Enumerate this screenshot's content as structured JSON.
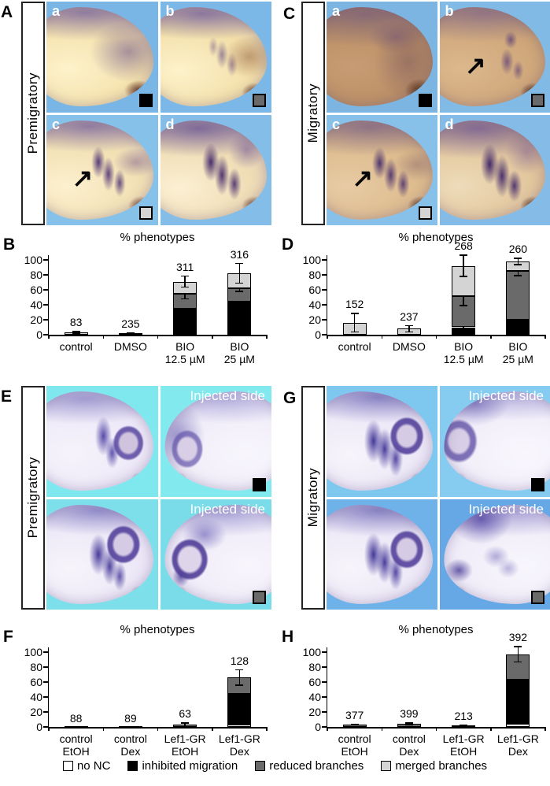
{
  "colors": {
    "black": "#000000",
    "dark_gray": "#6a6a6a",
    "light_gray": "#d4d4d4",
    "white": "#ffffff"
  },
  "icons": {
    "arrow": "↗"
  },
  "image_panels": [
    {
      "letter": "A",
      "side_label": "Premigratory",
      "tiles": [
        {
          "label": "a",
          "variant": "premig-a",
          "marker": "black"
        },
        {
          "label": "b",
          "variant": "premig-b",
          "marker": "dark_gray"
        },
        {
          "label": "c",
          "variant": "premig-c",
          "marker": "light_gray",
          "arrow": true
        },
        {
          "label": "d",
          "variant": "premig-d"
        }
      ]
    },
    {
      "letter": "C",
      "side_label": "Migratory",
      "tiles": [
        {
          "label": "a",
          "variant": "mig-a",
          "marker": "black"
        },
        {
          "label": "b",
          "variant": "mig-b",
          "marker": "dark_gray",
          "arrow": true
        },
        {
          "label": "c",
          "variant": "mig-c",
          "marker": "light_gray",
          "arrow": true
        },
        {
          "label": "d",
          "variant": "mig-d"
        }
      ]
    },
    {
      "letter": "E",
      "side_label": "Premigratory",
      "tiles": [
        {
          "variant": "e-ctrl1"
        },
        {
          "variant": "e-inj1",
          "overlay": "Injected side",
          "marker": "black",
          "flip": true
        },
        {
          "variant": "e-ctrl2"
        },
        {
          "variant": "e-inj2",
          "overlay": "Injected side",
          "marker": "dark_gray",
          "flip": true
        }
      ]
    },
    {
      "letter": "G",
      "side_label": "Migratory",
      "tiles": [
        {
          "variant": "g-ctrl1"
        },
        {
          "variant": "g-inj1",
          "overlay": "Injected side",
          "marker": "black",
          "flip": true
        },
        {
          "variant": "g-ctrl2"
        },
        {
          "variant": "g-inj2",
          "overlay": "Injected side",
          "marker": "dark_gray",
          "flip": true
        }
      ]
    }
  ],
  "chart_data": [
    {
      "id": "B",
      "type": "bar",
      "stacked": true,
      "title": "% phenotypes",
      "ylim": [
        0,
        100
      ],
      "yticks": [
        0,
        20,
        40,
        60,
        80,
        100
      ],
      "grid": false,
      "legend_position": "bottom-shared",
      "categories": [
        "control",
        "DMSO",
        "BIO\n12.5 µM",
        "BIO\n25 µM"
      ],
      "counts": [
        83,
        235,
        311,
        316
      ],
      "series": [
        {
          "name": "inhibited migration",
          "color": "#000000",
          "values": [
            0,
            0,
            35,
            44
          ],
          "errors": [
            0,
            0,
            18,
            12
          ]
        },
        {
          "name": "reduced branches",
          "color": "#6a6a6a",
          "values": [
            0,
            0,
            20,
            18
          ],
          "errors": [
            0,
            0,
            8,
            5
          ]
        },
        {
          "name": "merged branches",
          "color": "#d4d4d4",
          "values": [
            3,
            2,
            16,
            20
          ],
          "errors": [
            2,
            1,
            8,
            14
          ]
        }
      ]
    },
    {
      "id": "D",
      "type": "bar",
      "stacked": true,
      "title": "% phenotypes",
      "ylim": [
        0,
        100
      ],
      "yticks": [
        0,
        20,
        40,
        60,
        80,
        100
      ],
      "grid": false,
      "legend_position": "bottom-shared",
      "categories": [
        "control",
        "DMSO",
        "BIO\n12.5 µM",
        "BIO\n25 µM"
      ],
      "counts": [
        152,
        237,
        268,
        260
      ],
      "series": [
        {
          "name": "inhibited migration",
          "color": "#000000",
          "values": [
            0,
            0,
            10,
            20
          ],
          "errors": [
            0,
            0,
            7,
            8
          ]
        },
        {
          "name": "reduced branches",
          "color": "#6a6a6a",
          "values": [
            0,
            0,
            42,
            65
          ],
          "errors": [
            0,
            0,
            14,
            7
          ]
        },
        {
          "name": "merged branches",
          "color": "#d4d4d4",
          "values": [
            16,
            8,
            40,
            13
          ],
          "errors": [
            13,
            5,
            15,
            5
          ]
        }
      ]
    },
    {
      "id": "F",
      "type": "bar",
      "stacked": true,
      "title": "% phenotypes",
      "ylim": [
        0,
        100
      ],
      "yticks": [
        0,
        20,
        40,
        60,
        80,
        100
      ],
      "grid": false,
      "legend_position": "bottom-shared",
      "categories": [
        "control\nEtOH",
        "control\nDex",
        "Lef1-GR\nEtOH",
        "Lef1-GR\nDex"
      ],
      "counts": [
        88,
        89,
        63,
        128
      ],
      "series": [
        {
          "name": "no NC",
          "color": "#ffffff",
          "values": [
            0,
            0,
            0,
            3
          ],
          "errors": [
            0,
            0,
            0,
            0
          ]
        },
        {
          "name": "inhibited migration",
          "color": "#000000",
          "values": [
            0,
            0,
            0,
            41
          ],
          "errors": [
            0,
            0,
            0,
            18
          ]
        },
        {
          "name": "reduced branches",
          "color": "#6a6a6a",
          "values": [
            0.5,
            0.5,
            3,
            22
          ],
          "errors": [
            0,
            0,
            3,
            11
          ]
        }
      ]
    },
    {
      "id": "H",
      "type": "bar",
      "stacked": true,
      "title": "% phenotypes",
      "ylim": [
        0,
        100
      ],
      "yticks": [
        0,
        20,
        40,
        60,
        80,
        100
      ],
      "grid": false,
      "legend_position": "bottom-shared",
      "categories": [
        "control\nEtOH",
        "control\nDex",
        "Lef1-GR\nEtOH",
        "Lef1-GR\nDex"
      ],
      "counts": [
        377,
        399,
        213,
        392
      ],
      "series": [
        {
          "name": "no NC",
          "color": "#ffffff",
          "values": [
            0,
            0,
            0,
            4
          ],
          "errors": [
            0,
            0,
            0,
            0
          ]
        },
        {
          "name": "inhibited migration",
          "color": "#000000",
          "values": [
            0,
            0,
            0,
            59
          ],
          "errors": [
            0,
            0,
            0,
            11
          ]
        },
        {
          "name": "reduced branches",
          "color": "#6a6a6a",
          "values": [
            3,
            4,
            2,
            34
          ],
          "errors": [
            1,
            2,
            1,
            11
          ]
        }
      ]
    }
  ],
  "legend": {
    "items": [
      {
        "label": "no NC",
        "color": "#ffffff"
      },
      {
        "label": "inhibited migration",
        "color": "#000000"
      },
      {
        "label": "reduced branches",
        "color": "#6a6a6a"
      },
      {
        "label": "merged branches",
        "color": "#d4d4d4"
      }
    ]
  }
}
